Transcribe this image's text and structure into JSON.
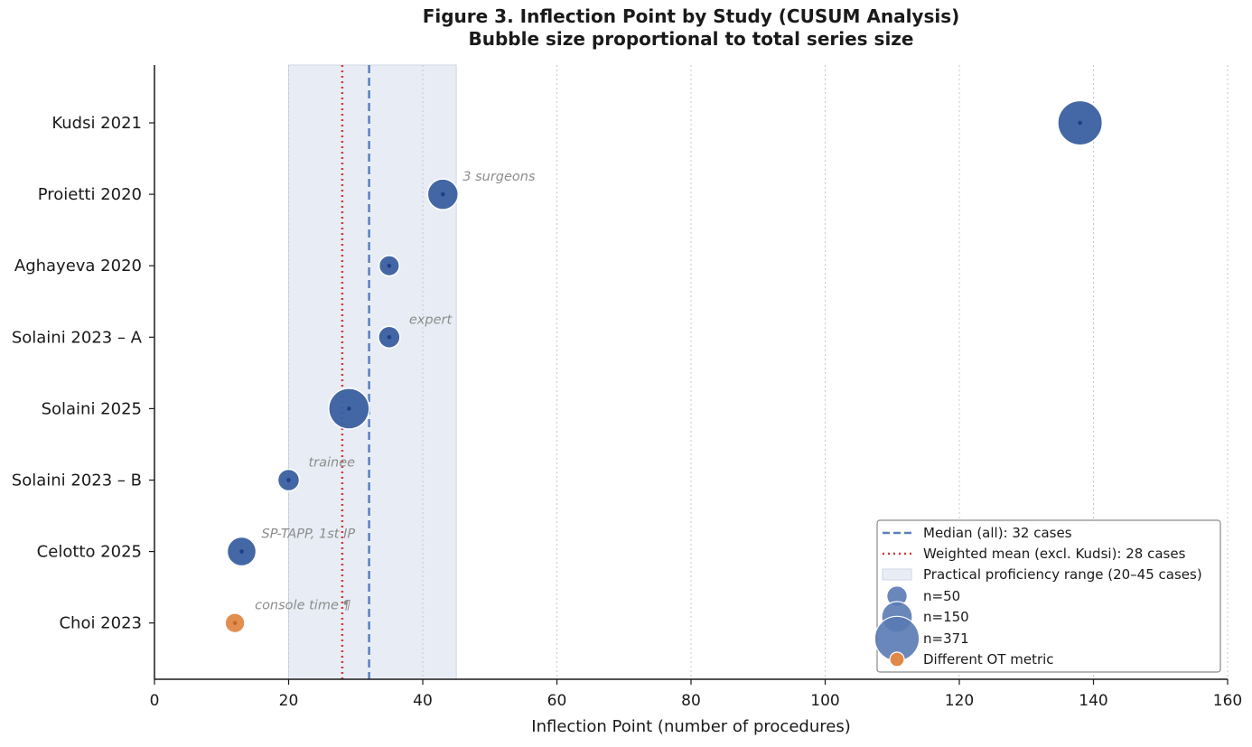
{
  "chart_data": {
    "type": "scatter",
    "title": "Figure 3. Inflection Point by Study (CUSUM Analysis)",
    "subtitle": "Bubble size proportional to total series size",
    "xlabel": "Inflection Point (number of procedures)",
    "xlim": [
      0,
      160
    ],
    "xticks": [
      0,
      20,
      40,
      60,
      80,
      100,
      120,
      140,
      160
    ],
    "grid": "x, dotted",
    "categories": [
      "Kudsi 2021",
      "Proietti 2020",
      "Aghayeva 2020",
      "Solaini 2023 – A",
      "Solaini 2025",
      "Solaini 2023 – B",
      "Celotto 2025",
      "Choi 2023"
    ],
    "points": [
      {
        "study": "Kudsi 2021",
        "x": 138,
        "n": 371,
        "metric": "standard",
        "annotation": ""
      },
      {
        "study": "Proietti 2020",
        "x": 43,
        "n": 150,
        "metric": "standard",
        "annotation": "3 surgeons"
      },
      {
        "study": "Aghayeva 2020",
        "x": 35,
        "n": 50,
        "metric": "standard",
        "annotation": ""
      },
      {
        "study": "Solaini 2023 – A",
        "x": 35,
        "n": 60,
        "metric": "standard",
        "annotation": "expert"
      },
      {
        "study": "Solaini 2025",
        "x": 29,
        "n": 300,
        "metric": "standard",
        "annotation": ""
      },
      {
        "study": "Solaini 2023 – B",
        "x": 20,
        "n": 60,
        "metric": "standard",
        "annotation": "trainee"
      },
      {
        "study": "Celotto 2025",
        "x": 13,
        "n": 130,
        "metric": "standard",
        "annotation": "SP-TAPP, 1st IP"
      },
      {
        "study": "Choi 2023",
        "x": 12,
        "n": 45,
        "metric": "different",
        "annotation": "console time ¶"
      }
    ],
    "reference_lines": {
      "median": 32,
      "weighted_mean": 28,
      "proficiency_range": [
        20,
        45
      ]
    },
    "legend": {
      "position": "bottom-right",
      "items": [
        {
          "kind": "dashed-line",
          "label": "Median (all): 32 cases"
        },
        {
          "kind": "dotted-line",
          "label": "Weighted mean (excl. Kudsi): 28 cases"
        },
        {
          "kind": "band",
          "label": "Practical proficiency range (20–45 cases)"
        },
        {
          "kind": "bubble",
          "n": 50,
          "label": "n=50"
        },
        {
          "kind": "bubble",
          "n": 150,
          "label": "n=150"
        },
        {
          "kind": "bubble",
          "n": 371,
          "label": "n=371"
        },
        {
          "kind": "orange-bubble",
          "label": "Different OT metric"
        }
      ]
    },
    "colors": {
      "bubble": "#3a5fa0",
      "bubble_edge": "#ffffff",
      "bubble_center": "#1f3f86",
      "different_metric": "#e08848",
      "median_line": "#5b7fbf",
      "mean_line": "#d23a3a",
      "band": "#e8edf5",
      "grid": "#c8c8c8"
    }
  }
}
